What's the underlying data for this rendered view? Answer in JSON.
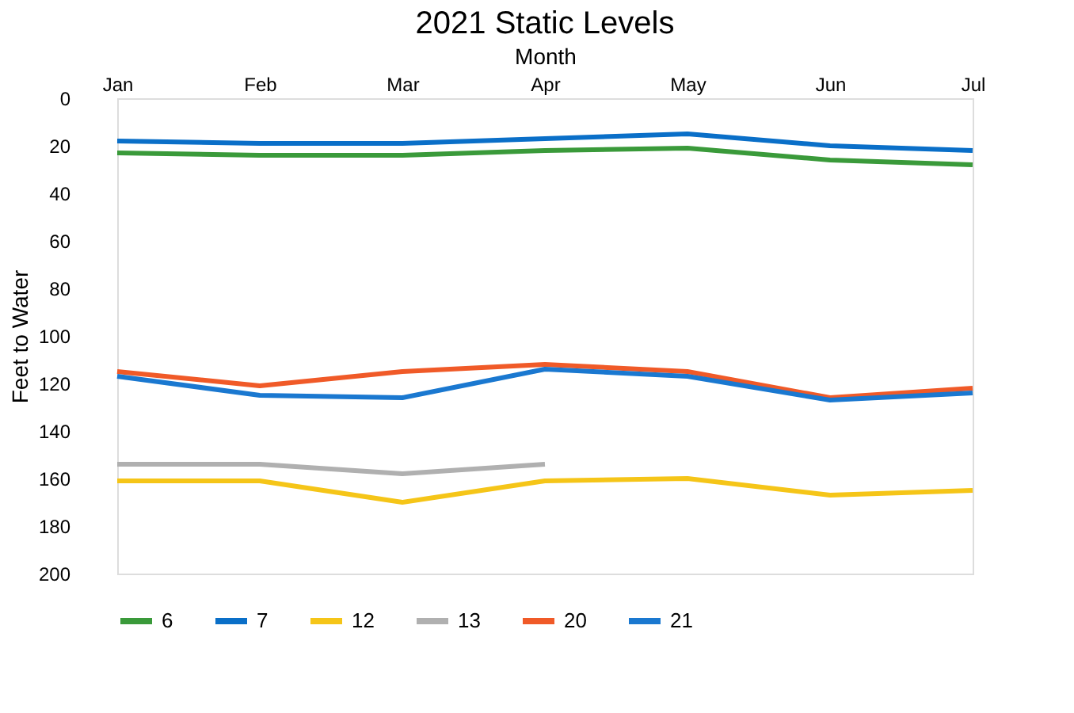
{
  "chart_data": {
    "type": "line",
    "title": "2021 Static Levels",
    "xlabel": "Month",
    "ylabel": "Feet to Water",
    "categories": [
      "Jan",
      "Feb",
      "Mar",
      "Apr",
      "May",
      "Jun",
      "Jul"
    ],
    "ylim": [
      200,
      0
    ],
    "yticks": [
      0,
      20,
      40,
      60,
      80,
      100,
      120,
      140,
      160,
      180,
      200
    ],
    "grid": false,
    "legend": "bottom",
    "marker": "none",
    "line_style": "solid",
    "series": [
      {
        "name": "6",
        "color": "#3a9a3a",
        "values": [
          23,
          24,
          24,
          22,
          21,
          26,
          28
        ]
      },
      {
        "name": "7",
        "color": "#0a6fc8",
        "values": [
          18,
          19,
          19,
          17,
          15,
          20,
          22
        ]
      },
      {
        "name": "12",
        "color": "#f5c518",
        "values": [
          161,
          161,
          170,
          161,
          160,
          167,
          165
        ]
      },
      {
        "name": "13",
        "color": "#b0b0b0",
        "values": [
          154,
          154,
          158,
          154,
          null,
          null,
          null
        ]
      },
      {
        "name": "20",
        "color": "#f05a28",
        "values": [
          115,
          121,
          115,
          112,
          115,
          126,
          122
        ]
      },
      {
        "name": "21",
        "color": "#1a78d0",
        "values": [
          117,
          125,
          126,
          114,
          117,
          127,
          124
        ]
      }
    ]
  }
}
